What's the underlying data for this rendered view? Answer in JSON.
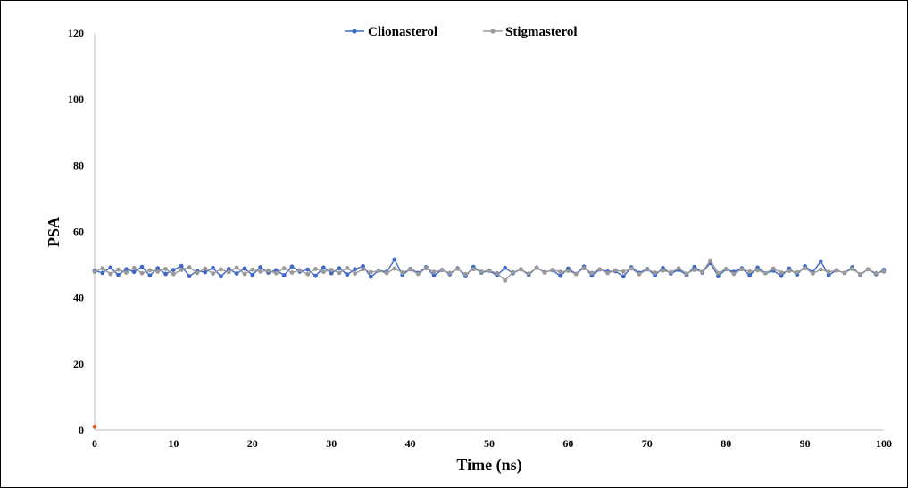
{
  "chart_data": {
    "type": "line",
    "title": "",
    "xlabel": "Time (ns)",
    "ylabel": "PSA",
    "xlim": [
      0,
      100
    ],
    "ylim": [
      0,
      120
    ],
    "xticks": [
      0,
      10,
      20,
      30,
      40,
      50,
      60,
      70,
      80,
      90,
      100
    ],
    "yticks": [
      0,
      20,
      40,
      60,
      80,
      100,
      120
    ],
    "grid": false,
    "legend_position": "top-center",
    "series": [
      {
        "name": "Clionasterol",
        "color": "#4169c4",
        "x": [
          0,
          1,
          2,
          3,
          4,
          5,
          6,
          7,
          8,
          9,
          10,
          11,
          12,
          13,
          14,
          15,
          16,
          17,
          18,
          19,
          20,
          21,
          22,
          23,
          24,
          25,
          26,
          27,
          28,
          29,
          30,
          31,
          32,
          33,
          34,
          35,
          36,
          37,
          38,
          39,
          40,
          41,
          42,
          43,
          44,
          45,
          46,
          47,
          48,
          49,
          50,
          51,
          52,
          53,
          54,
          55,
          56,
          57,
          58,
          59,
          60,
          61,
          62,
          63,
          64,
          65,
          66,
          67,
          68,
          69,
          70,
          71,
          72,
          73,
          74,
          75,
          76,
          77,
          78,
          79,
          80,
          81,
          82,
          83,
          84,
          85,
          86,
          87,
          88,
          89,
          90,
          91,
          92,
          93,
          94,
          95,
          96,
          97,
          98,
          99,
          100
        ],
        "y": [
          48.2,
          47.5,
          49.1,
          46.9,
          48.6,
          47.8,
          49.3,
          46.7,
          48.9,
          47.2,
          48.4,
          49.6,
          46.5,
          48.1,
          47.7,
          49.0,
          46.4,
          48.7,
          47.3,
          48.8,
          46.9,
          49.2,
          47.6,
          48.3,
          46.8,
          49.4,
          47.9,
          48.5,
          46.6,
          49.1,
          47.4,
          48.9,
          47.0,
          48.6,
          49.5,
          46.3,
          48.2,
          47.8,
          51.5,
          46.9,
          48.7,
          47.5,
          49.2,
          46.7,
          48.4,
          47.1,
          48.9,
          46.5,
          49.3,
          47.6,
          48.1,
          46.8,
          49.0,
          47.4,
          48.6,
          46.9,
          49.1,
          47.7,
          48.3,
          46.6,
          48.8,
          47.2,
          49.4,
          46.7,
          48.5,
          47.9,
          48.0,
          46.4,
          49.2,
          47.5,
          48.7,
          46.8,
          49.0,
          47.3,
          48.4,
          46.9,
          49.3,
          47.6,
          50.5,
          46.5,
          48.6,
          47.8,
          48.9,
          46.7,
          49.1,
          47.4,
          48.2,
          46.6,
          48.8,
          47.0,
          49.5,
          47.7,
          51.0,
          46.8,
          48.3,
          47.5,
          49.2,
          46.9,
          48.6,
          47.1,
          48.4
        ]
      },
      {
        "name": "Stigmasterol",
        "color": "#9a9a9a",
        "x": [
          0,
          1,
          2,
          3,
          4,
          5,
          6,
          7,
          8,
          9,
          10,
          11,
          12,
          13,
          14,
          15,
          16,
          17,
          18,
          19,
          20,
          21,
          22,
          23,
          24,
          25,
          26,
          27,
          28,
          29,
          30,
          31,
          32,
          33,
          34,
          35,
          36,
          37,
          38,
          39,
          40,
          41,
          42,
          43,
          44,
          45,
          46,
          47,
          48,
          49,
          50,
          51,
          52,
          53,
          54,
          55,
          56,
          57,
          58,
          59,
          60,
          61,
          62,
          63,
          64,
          65,
          66,
          67,
          68,
          69,
          70,
          71,
          72,
          73,
          74,
          75,
          76,
          77,
          78,
          79,
          80,
          81,
          82,
          83,
          84,
          85,
          86,
          87,
          88,
          89,
          90,
          91,
          92,
          93,
          94,
          95,
          96,
          97,
          98,
          99,
          100
        ],
        "y": [
          47.8,
          48.9,
          47.2,
          48.5,
          47.6,
          49.0,
          47.4,
          48.3,
          47.9,
          48.7,
          47.1,
          48.4,
          49.2,
          47.5,
          48.8,
          47.3,
          48.6,
          47.7,
          49.1,
          47.2,
          48.5,
          47.9,
          48.2,
          47.4,
          48.9,
          47.6,
          48.3,
          47.1,
          48.7,
          47.8,
          48.4,
          47.5,
          49.0,
          47.3,
          48.6,
          47.7,
          48.1,
          47.4,
          48.8,
          47.6,
          48.5,
          47.2,
          48.9,
          47.8,
          48.3,
          47.5,
          48.7,
          47.1,
          48.6,
          47.9,
          48.2,
          47.4,
          45.2,
          47.7,
          48.5,
          47.3,
          49.0,
          47.6,
          48.4,
          47.8,
          48.1,
          47.2,
          48.9,
          47.5,
          48.6,
          47.4,
          48.3,
          47.9,
          48.8,
          47.1,
          48.5,
          47.6,
          48.2,
          47.7,
          48.9,
          47.3,
          48.4,
          47.8,
          51.2,
          47.5,
          48.7,
          47.2,
          48.6,
          47.9,
          48.3,
          47.4,
          48.8,
          47.6,
          48.1,
          47.7,
          48.9,
          47.3,
          48.5,
          47.8,
          48.2,
          47.5,
          48.7,
          47.1,
          48.6,
          47.4,
          47.9
        ]
      },
      {
        "name": "",
        "color": "#d55a1e",
        "x": [
          0
        ],
        "y": [
          1
        ]
      }
    ]
  }
}
